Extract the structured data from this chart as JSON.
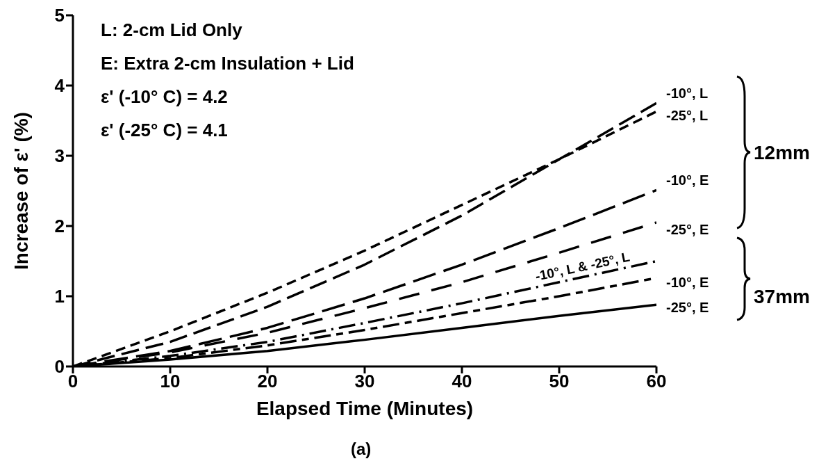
{
  "chart_data": {
    "type": "line",
    "xlabel": "Elapsed Time (Minutes)",
    "ylabel": "Increase of ε' (%)",
    "x": [
      0,
      10,
      20,
      30,
      40,
      50,
      60
    ],
    "series": [
      {
        "name": "-10°, L",
        "color": "#000000",
        "line_style": "dashed",
        "values": [
          0,
          0.35,
          0.85,
          1.45,
          2.15,
          2.95,
          3.75
        ]
      },
      {
        "name": "-25°, L",
        "color": "#000000",
        "line_style": "dashed",
        "values": [
          0,
          0.5,
          1.05,
          1.65,
          2.3,
          2.95,
          3.63
        ]
      },
      {
        "name": "-10°, E",
        "color": "#000000",
        "line_style": "dashed",
        "values": [
          0,
          0.22,
          0.55,
          0.97,
          1.45,
          1.97,
          2.51
        ]
      },
      {
        "name": "-25°, E",
        "color": "#000000",
        "line_style": "dashed",
        "values": [
          0,
          0.2,
          0.48,
          0.83,
          1.2,
          1.62,
          2.05
        ]
      },
      {
        "name": "-10°, L & -25°, L",
        "color": "#000000",
        "line_style": "dashed",
        "values": [
          0,
          0.15,
          0.35,
          0.62,
          0.9,
          1.2,
          1.5
        ]
      },
      {
        "name": "-10°, E",
        "color": "#000000",
        "line_style": "dashed",
        "values": [
          0,
          0.12,
          0.3,
          0.52,
          0.76,
          1.0,
          1.26
        ]
      },
      {
        "name": "-25°, E",
        "color": "#000000",
        "line_style": "solid",
        "values": [
          0,
          0.1,
          0.22,
          0.38,
          0.55,
          0.72,
          0.88
        ]
      }
    ],
    "xlim": [
      0,
      60
    ],
    "xticks": [
      0,
      10,
      20,
      30,
      40,
      50,
      60
    ],
    "ylim": [
      0,
      5
    ],
    "yticks": [
      0,
      1,
      2,
      3,
      4,
      5
    ],
    "grid": false,
    "legend": false,
    "annotations": [
      "L: 2-cm Lid Only",
      "E: Extra 2-cm Insulation + Lid",
      "ε' (-10° C) = 4.2",
      "ε' (-25° C) = 4.1",
      "12mm",
      "37mm",
      "(a)"
    ]
  }
}
